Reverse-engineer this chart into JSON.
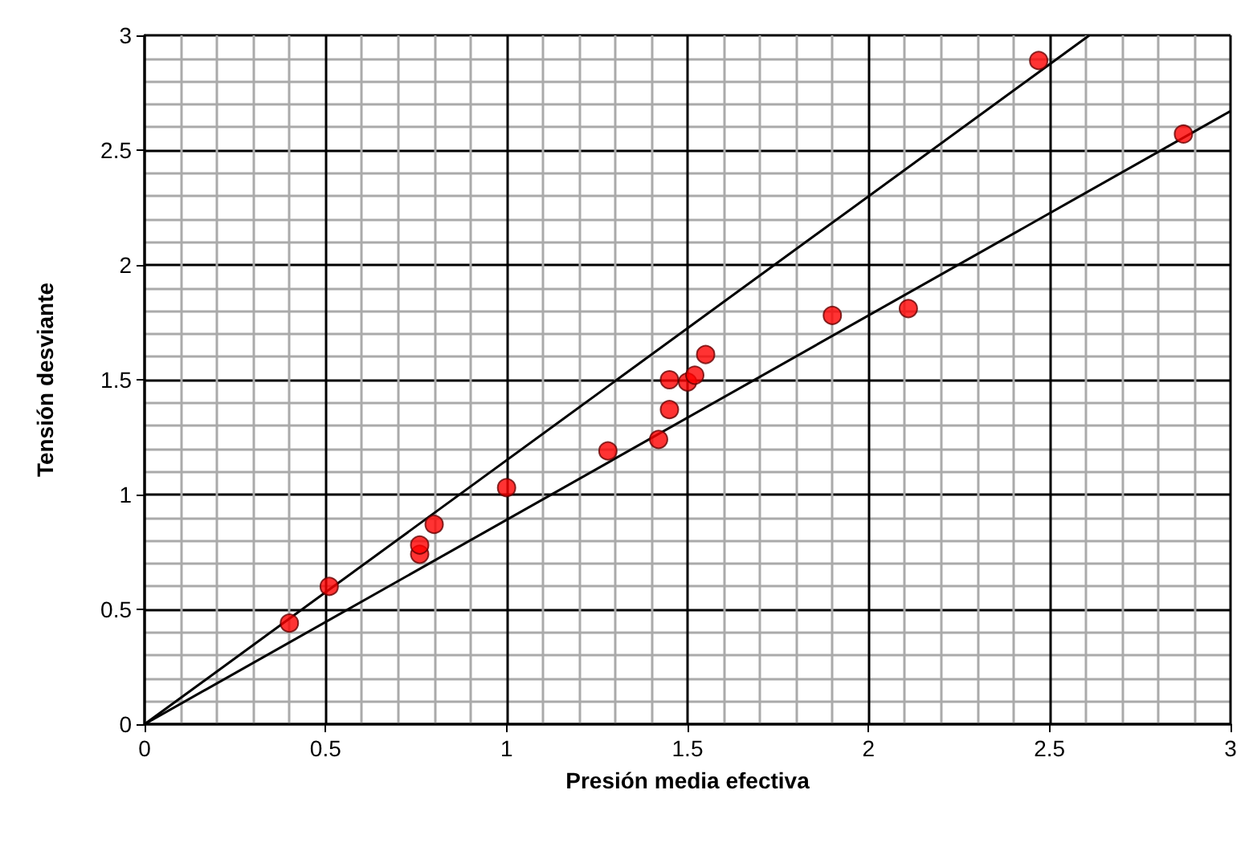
{
  "chart_data": {
    "type": "scatter",
    "xlabel": "Presión media efectiva",
    "ylabel": "Tensión desviante",
    "xlim": [
      0,
      3
    ],
    "ylim": [
      0,
      3
    ],
    "xticks": [
      0,
      0.5,
      1,
      1.5,
      2,
      2.5,
      3
    ],
    "yticks": [
      0,
      0.5,
      1,
      1.5,
      2,
      2.5,
      3
    ],
    "grid": true,
    "marker": "circle",
    "series": [
      {
        "color": "#ff0000",
        "x": [
          0.4,
          0.51,
          0.76,
          0.76,
          0.8,
          1.0,
          1.28,
          1.42,
          1.45,
          1.45,
          1.5,
          1.52,
          1.55,
          1.9,
          2.11,
          2.47,
          2.87
        ],
        "values": [
          0.44,
          0.6,
          0.74,
          0.78,
          0.87,
          1.03,
          1.19,
          1.24,
          1.37,
          1.5,
          1.49,
          1.52,
          1.61,
          1.78,
          1.81,
          2.89,
          2.57
        ]
      },
      {
        "type": "line",
        "color": "#000000",
        "x": [
          0,
          2.61
        ],
        "values": [
          0,
          3.0
        ],
        "marker": "none"
      },
      {
        "type": "line",
        "color": "#000000",
        "x": [
          0,
          3
        ],
        "values": [
          0,
          2.67
        ],
        "marker": "none"
      }
    ]
  }
}
